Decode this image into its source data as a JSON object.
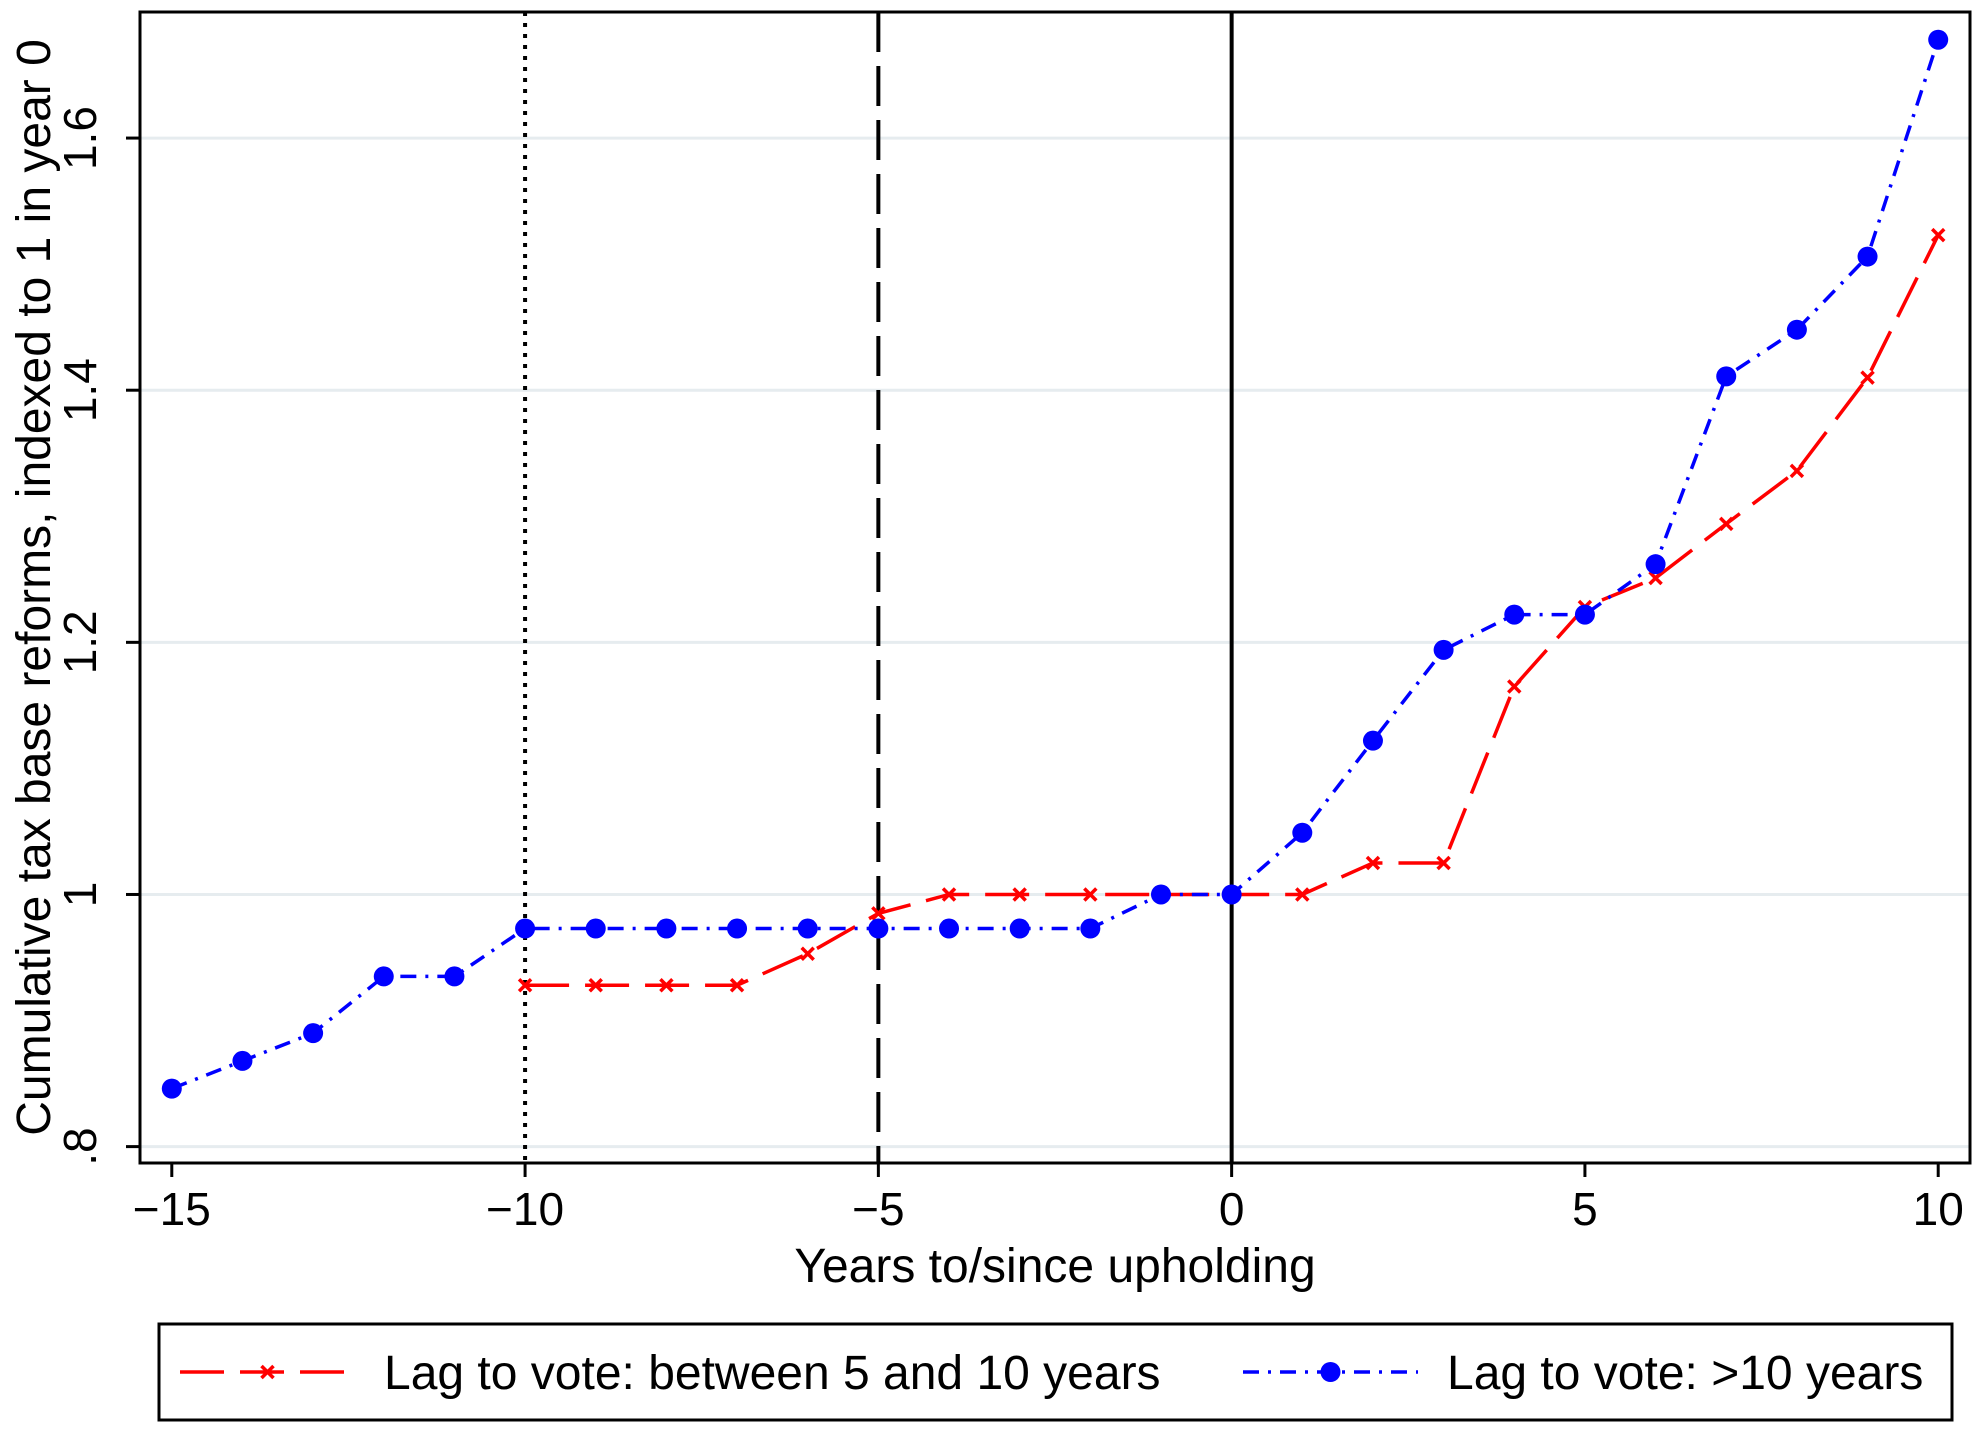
{
  "chart_data": {
    "type": "line",
    "xlabel": "Years to/since upholding",
    "ylabel": "Cumulative tax base reforms, indexed to 1 in year 0",
    "xlim": [
      -15.45,
      10.45
    ],
    "ylim": [
      0.787,
      1.7
    ],
    "x_ticks": [
      -15,
      -10,
      -5,
      0,
      5,
      10
    ],
    "x_tick_labels": [
      "−15",
      "−10",
      "−5",
      "0",
      "5",
      "10"
    ],
    "y_ticks": [
      0.8,
      1.0,
      1.2,
      1.4,
      1.6
    ],
    "y_tick_labels": [
      ".8",
      "1",
      "1.2",
      "1.4",
      "1.6"
    ],
    "grid": true,
    "legend_position": "bottom",
    "vertical_lines": [
      {
        "x": -10,
        "style": "dotted"
      },
      {
        "x": -5,
        "style": "dashed"
      },
      {
        "x": 0,
        "style": "solid"
      }
    ],
    "series": [
      {
        "name": "Lag to vote: between 5 and 10 years",
        "color": "#ff0000",
        "marker": "x",
        "line_style": "long-dash",
        "x": [
          -10,
          -9,
          -8,
          -7,
          -6,
          -5,
          -4,
          -3,
          -2,
          -1,
          0,
          1,
          2,
          3,
          4,
          5,
          6,
          7,
          8,
          9,
          10
        ],
        "values": [
          0.928,
          0.928,
          0.928,
          0.928,
          0.953,
          0.985,
          1.0,
          1.0,
          1.0,
          1.0,
          1.0,
          1.0,
          1.025,
          1.025,
          1.165,
          1.228,
          1.251,
          1.294,
          1.336,
          1.41,
          1.523
        ]
      },
      {
        "name": "Lag to vote: >10 years",
        "color": "#0000ff",
        "marker": "circle",
        "line_style": "dash-dot",
        "x": [
          -15,
          -14,
          -13,
          -12,
          -11,
          -10,
          -9,
          -8,
          -7,
          -6,
          -5,
          -4,
          -3,
          -2,
          -1,
          0,
          1,
          2,
          3,
          4,
          5,
          6,
          7,
          8,
          9,
          10
        ],
        "values": [
          0.846,
          0.868,
          0.89,
          0.935,
          0.935,
          0.973,
          0.973,
          0.973,
          0.973,
          0.973,
          0.973,
          0.973,
          0.973,
          0.973,
          1.0,
          1.0,
          1.049,
          1.122,
          1.194,
          1.222,
          1.222,
          1.262,
          1.411,
          1.448,
          1.506,
          1.678
        ]
      }
    ]
  }
}
